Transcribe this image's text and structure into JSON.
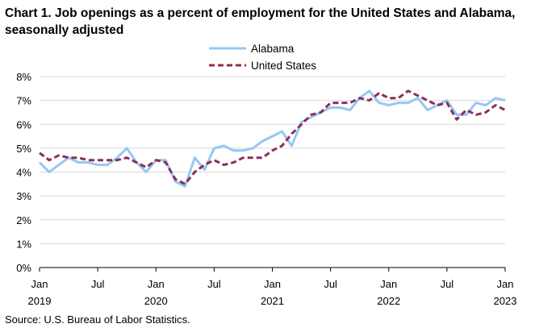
{
  "chart_data": {
    "type": "line",
    "title": "Chart 1. Job openings as a percent of employment for the United States and Alabama, seasonally adjusted",
    "source": "Source: U.S. Bureau of Labor Statistics.",
    "ylim": [
      0,
      8
    ],
    "y_ticks": [
      "0%",
      "1%",
      "2%",
      "3%",
      "4%",
      "5%",
      "6%",
      "7%",
      "8%"
    ],
    "x_ticks": [
      {
        "index": 0,
        "month": "Jan",
        "year": "2019"
      },
      {
        "index": 6,
        "month": "Jul",
        "year": ""
      },
      {
        "index": 12,
        "month": "Jan",
        "year": "2020"
      },
      {
        "index": 18,
        "month": "Jul",
        "year": ""
      },
      {
        "index": 24,
        "month": "Jan",
        "year": "2021"
      },
      {
        "index": 30,
        "month": "Jul",
        "year": ""
      },
      {
        "index": 36,
        "month": "Jan",
        "year": "2022"
      },
      {
        "index": 42,
        "month": "Jul",
        "year": ""
      },
      {
        "index": 48,
        "month": "Jan",
        "year": "2023"
      }
    ],
    "legend": "top-center",
    "grid": true,
    "series": [
      {
        "name": "Alabama",
        "color": "#96c7f1",
        "style": "solid",
        "values": [
          4.4,
          4.0,
          4.3,
          4.6,
          4.4,
          4.4,
          4.3,
          4.3,
          4.6,
          5.0,
          4.4,
          4.0,
          4.5,
          4.5,
          3.6,
          3.4,
          4.6,
          4.1,
          5.0,
          5.1,
          4.9,
          4.9,
          5.0,
          5.3,
          5.5,
          5.7,
          5.1,
          6.1,
          6.3,
          6.5,
          6.7,
          6.7,
          6.6,
          7.1,
          7.4,
          6.9,
          6.8,
          6.9,
          6.9,
          7.1,
          6.6,
          6.8,
          7.0,
          6.4,
          6.4,
          6.9,
          6.8,
          7.1,
          7.0
        ]
      },
      {
        "name": "United States",
        "color": "#8b2e5a",
        "style": "dashed",
        "values": [
          4.8,
          4.5,
          4.7,
          4.6,
          4.6,
          4.5,
          4.5,
          4.5,
          4.5,
          4.6,
          4.4,
          4.2,
          4.5,
          4.4,
          3.7,
          3.5,
          4.0,
          4.3,
          4.5,
          4.3,
          4.4,
          4.6,
          4.6,
          4.6,
          4.9,
          5.1,
          5.6,
          6.0,
          6.4,
          6.5,
          6.9,
          6.9,
          6.9,
          7.1,
          7.0,
          7.3,
          7.1,
          7.1,
          7.4,
          7.2,
          7.0,
          6.8,
          6.9,
          6.2,
          6.6,
          6.4,
          6.5,
          6.8,
          6.6
        ]
      }
    ]
  }
}
